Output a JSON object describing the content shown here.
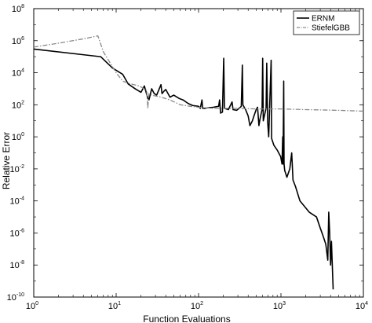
{
  "chart_data": {
    "type": "line",
    "xscale": "log",
    "yscale": "log",
    "xlim": [
      1,
      10000
    ],
    "ylim": [
      1e-10,
      100000000.0
    ],
    "xlabel": "Function Evaluations",
    "ylabel": "Relative Error",
    "title": "",
    "grid": false,
    "legend_position": "top-right",
    "x_ticks": [
      {
        "base": "10",
        "exp": "0",
        "value": 1
      },
      {
        "base": "10",
        "exp": "1",
        "value": 10
      },
      {
        "base": "10",
        "exp": "2",
        "value": 100
      },
      {
        "base": "10",
        "exp": "3",
        "value": 1000
      },
      {
        "base": "10",
        "exp": "4",
        "value": 10000
      }
    ],
    "y_ticks": [
      {
        "base": "10",
        "exp": "-10",
        "value": 1e-10
      },
      {
        "base": "10",
        "exp": "-8",
        "value": 1e-08
      },
      {
        "base": "10",
        "exp": "-6",
        "value": 1e-06
      },
      {
        "base": "10",
        "exp": "-4",
        "value": 0.0001
      },
      {
        "base": "10",
        "exp": "-2",
        "value": 0.01
      },
      {
        "base": "10",
        "exp": "0",
        "value": 1
      },
      {
        "base": "10",
        "exp": "2",
        "value": 100
      },
      {
        "base": "10",
        "exp": "4",
        "value": 10000
      },
      {
        "base": "10",
        "exp": "6",
        "value": 1000000
      },
      {
        "base": "10",
        "exp": "8",
        "value": 100000000
      }
    ],
    "series": [
      {
        "name": "ERNM",
        "color": "#000000",
        "style": "solid",
        "points": [
          [
            1,
            300000
          ],
          [
            6.5,
            100000
          ],
          [
            9,
            20000
          ],
          [
            12,
            8000
          ],
          [
            14,
            2000
          ],
          [
            17,
            1000
          ],
          [
            20,
            600
          ],
          [
            22,
            1500
          ],
          [
            24,
            300
          ],
          [
            25,
            200
          ],
          [
            27,
            1000
          ],
          [
            29,
            500
          ],
          [
            31,
            400
          ],
          [
            35,
            1800
          ],
          [
            36,
            500
          ],
          [
            38,
            700
          ],
          [
            40,
            900
          ],
          [
            45,
            300
          ],
          [
            50,
            400
          ],
          [
            58,
            250
          ],
          [
            65,
            200
          ],
          [
            75,
            120
          ],
          [
            85,
            90
          ],
          [
            100,
            80
          ],
          [
            105,
            60
          ],
          [
            110,
            200
          ],
          [
            112,
            60
          ],
          [
            118,
            60
          ],
          [
            130,
            65
          ],
          [
            150,
            70
          ],
          [
            175,
            80
          ],
          [
            180,
            200
          ],
          [
            185,
            30
          ],
          [
            195,
            35
          ],
          [
            202,
            80000
          ],
          [
            206,
            60
          ],
          [
            230,
            50
          ],
          [
            255,
            150
          ],
          [
            262,
            50
          ],
          [
            290,
            45
          ],
          [
            310,
            60
          ],
          [
            330,
            80
          ],
          [
            340,
            30000
          ],
          [
            345,
            100
          ],
          [
            372,
            50
          ],
          [
            400,
            20
          ],
          [
            420,
            5
          ],
          [
            450,
            10
          ],
          [
            470,
            20
          ],
          [
            500,
            50
          ],
          [
            520,
            70
          ],
          [
            540,
            5
          ],
          [
            560,
            15
          ],
          [
            590,
            50
          ],
          [
            600,
            80000
          ],
          [
            610,
            10
          ],
          [
            640,
            30
          ],
          [
            660,
            60
          ],
          [
            672,
            40000
          ],
          [
            690,
            8
          ],
          [
            710,
            1
          ],
          [
            720,
            10
          ],
          [
            760,
            60000
          ],
          [
            770,
            0.8
          ],
          [
            820,
            0.3
          ],
          [
            900,
            0.15
          ],
          [
            960,
            0.08
          ],
          [
            990,
            0.06
          ],
          [
            1030,
            0.02
          ],
          [
            1050,
            1
          ],
          [
            1060,
            0.02
          ],
          [
            1080,
            3000
          ],
          [
            1090,
            0.02
          ],
          [
            1110,
            0.008
          ],
          [
            1180,
            0.003
          ],
          [
            1280,
            0.01
          ],
          [
            1350,
            0.1
          ],
          [
            1400,
            0.002
          ],
          [
            1500,
            0.0008
          ],
          [
            1700,
            0.0001
          ],
          [
            1900,
            5e-05
          ],
          [
            2200,
            2e-05
          ],
          [
            2700,
            1e-05
          ],
          [
            3000,
            2e-06
          ],
          [
            3200,
            8e-07
          ],
          [
            3500,
            2e-07
          ],
          [
            3700,
            2e-08
          ],
          [
            3800,
            2e-05
          ],
          [
            3900,
            1e-06
          ],
          [
            4000,
            1e-08
          ],
          [
            4100,
            3e-07
          ],
          [
            4300,
            3e-10
          ]
        ]
      },
      {
        "name": "StiefelGBB",
        "color": "#8a8a8a",
        "style": "dashdot",
        "points": [
          [
            1,
            400000
          ],
          [
            2,
            700000
          ],
          [
            4,
            1300000
          ],
          [
            6,
            2000000
          ],
          [
            7,
            200000
          ],
          [
            10,
            10000
          ],
          [
            12,
            3000
          ],
          [
            15,
            2000
          ],
          [
            19,
            1500
          ],
          [
            22,
            1000
          ],
          [
            23.5,
            800
          ],
          [
            24.2,
            60
          ],
          [
            25,
            500
          ],
          [
            27,
            400
          ],
          [
            35,
            300
          ],
          [
            45,
            200
          ],
          [
            60,
            100
          ],
          [
            80,
            80
          ],
          [
            100,
            70
          ],
          [
            150,
            60
          ],
          [
            200,
            60
          ],
          [
            300,
            60
          ],
          [
            500,
            55
          ],
          [
            1000,
            55
          ],
          [
            2000,
            50
          ],
          [
            5000,
            45
          ],
          [
            10000,
            40
          ]
        ]
      }
    ]
  }
}
